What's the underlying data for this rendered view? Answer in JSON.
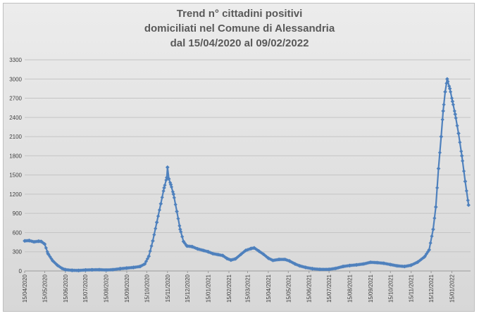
{
  "chart_data": {
    "type": "line",
    "title_lines": [
      "Trend n° cittadini positivi",
      "domiciliati nel Comune di Alessandria",
      "dal 15/04/2020 al 09/02/2022"
    ],
    "xlabel": "",
    "ylabel": "",
    "ylim": [
      0,
      3300
    ],
    "yticks": [
      0,
      300,
      600,
      900,
      1200,
      1500,
      1800,
      2100,
      2400,
      2700,
      3000,
      3300
    ],
    "x_tick_labels": [
      "15/04/2020",
      "15/05/2020",
      "15/06/2020",
      "15/07/2020",
      "15/08/2020",
      "15/09/2020",
      "15/10/2020",
      "15/11/2020",
      "15/12/2020",
      "15/01/2021",
      "15/02/2021",
      "15/03/2021",
      "15/04/2021",
      "15/05/2021",
      "15/06/2021",
      "15/07/2021",
      "15/08/2021",
      "15/09/2021",
      "15/10/2021",
      "15/11/2021",
      "15/12/2021",
      "15/01/2022"
    ],
    "grid": true,
    "legend": "none",
    "line_color": "#4f81bd",
    "series": [
      {
        "points": [
          {
            "x": "2020-04-15",
            "y": 470
          },
          {
            "x": "2020-04-22",
            "y": 475
          },
          {
            "x": "2020-04-29",
            "y": 455
          },
          {
            "x": "2020-05-06",
            "y": 465
          },
          {
            "x": "2020-05-10",
            "y": 460
          },
          {
            "x": "2020-05-15",
            "y": 420
          },
          {
            "x": "2020-05-20",
            "y": 270
          },
          {
            "x": "2020-05-27",
            "y": 160
          },
          {
            "x": "2020-06-03",
            "y": 90
          },
          {
            "x": "2020-06-10",
            "y": 40
          },
          {
            "x": "2020-06-15",
            "y": 20
          },
          {
            "x": "2020-06-25",
            "y": 10
          },
          {
            "x": "2020-07-05",
            "y": 8
          },
          {
            "x": "2020-07-15",
            "y": 15
          },
          {
            "x": "2020-07-25",
            "y": 18
          },
          {
            "x": "2020-08-05",
            "y": 20
          },
          {
            "x": "2020-08-15",
            "y": 15
          },
          {
            "x": "2020-08-25",
            "y": 20
          },
          {
            "x": "2020-09-05",
            "y": 35
          },
          {
            "x": "2020-09-15",
            "y": 45
          },
          {
            "x": "2020-09-25",
            "y": 55
          },
          {
            "x": "2020-10-05",
            "y": 70
          },
          {
            "x": "2020-10-12",
            "y": 110
          },
          {
            "x": "2020-10-18",
            "y": 230
          },
          {
            "x": "2020-10-24",
            "y": 470
          },
          {
            "x": "2020-10-30",
            "y": 760
          },
          {
            "x": "2020-11-05",
            "y": 1050
          },
          {
            "x": "2020-11-10",
            "y": 1300
          },
          {
            "x": "2020-11-14",
            "y": 1460
          },
          {
            "x": "2020-11-15",
            "y": 1620
          },
          {
            "x": "2020-11-17",
            "y": 1440
          },
          {
            "x": "2020-11-20",
            "y": 1350
          },
          {
            "x": "2020-11-24",
            "y": 1200
          },
          {
            "x": "2020-11-29",
            "y": 930
          },
          {
            "x": "2020-12-04",
            "y": 650
          },
          {
            "x": "2020-12-09",
            "y": 460
          },
          {
            "x": "2020-12-14",
            "y": 390
          },
          {
            "x": "2020-12-22",
            "y": 380
          },
          {
            "x": "2020-12-30",
            "y": 345
          },
          {
            "x": "2021-01-08",
            "y": 320
          },
          {
            "x": "2021-01-15",
            "y": 300
          },
          {
            "x": "2021-01-22",
            "y": 270
          },
          {
            "x": "2021-01-30",
            "y": 255
          },
          {
            "x": "2021-02-06",
            "y": 240
          },
          {
            "x": "2021-02-12",
            "y": 195
          },
          {
            "x": "2021-02-18",
            "y": 170
          },
          {
            "x": "2021-02-25",
            "y": 190
          },
          {
            "x": "2021-03-05",
            "y": 260
          },
          {
            "x": "2021-03-12",
            "y": 320
          },
          {
            "x": "2021-03-20",
            "y": 350
          },
          {
            "x": "2021-03-25",
            "y": 360
          },
          {
            "x": "2021-04-01",
            "y": 310
          },
          {
            "x": "2021-04-08",
            "y": 260
          },
          {
            "x": "2021-04-15",
            "y": 200
          },
          {
            "x": "2021-04-22",
            "y": 165
          },
          {
            "x": "2021-05-01",
            "y": 180
          },
          {
            "x": "2021-05-10",
            "y": 180
          },
          {
            "x": "2021-05-17",
            "y": 155
          },
          {
            "x": "2021-05-25",
            "y": 110
          },
          {
            "x": "2021-06-01",
            "y": 80
          },
          {
            "x": "2021-06-10",
            "y": 55
          },
          {
            "x": "2021-06-20",
            "y": 35
          },
          {
            "x": "2021-07-01",
            "y": 25
          },
          {
            "x": "2021-07-15",
            "y": 25
          },
          {
            "x": "2021-07-25",
            "y": 40
          },
          {
            "x": "2021-08-05",
            "y": 70
          },
          {
            "x": "2021-08-15",
            "y": 85
          },
          {
            "x": "2021-08-25",
            "y": 95
          },
          {
            "x": "2021-09-05",
            "y": 110
          },
          {
            "x": "2021-09-15",
            "y": 135
          },
          {
            "x": "2021-09-25",
            "y": 130
          },
          {
            "x": "2021-10-05",
            "y": 120
          },
          {
            "x": "2021-10-15",
            "y": 100
          },
          {
            "x": "2021-10-25",
            "y": 80
          },
          {
            "x": "2021-11-05",
            "y": 70
          },
          {
            "x": "2021-11-15",
            "y": 90
          },
          {
            "x": "2021-11-25",
            "y": 140
          },
          {
            "x": "2021-12-05",
            "y": 220
          },
          {
            "x": "2021-12-12",
            "y": 330
          },
          {
            "x": "2021-12-18",
            "y": 650
          },
          {
            "x": "2021-12-22",
            "y": 1000
          },
          {
            "x": "2021-12-26",
            "y": 1600
          },
          {
            "x": "2021-12-30",
            "y": 2100
          },
          {
            "x": "2022-01-02",
            "y": 2500
          },
          {
            "x": "2022-01-05",
            "y": 2800
          },
          {
            "x": "2022-01-08",
            "y": 3000
          },
          {
            "x": "2022-01-12",
            "y": 2850
          },
          {
            "x": "2022-01-16",
            "y": 2650
          },
          {
            "x": "2022-01-20",
            "y": 2450
          },
          {
            "x": "2022-01-25",
            "y": 2150
          },
          {
            "x": "2022-01-30",
            "y": 1800
          },
          {
            "x": "2022-02-04",
            "y": 1400
          },
          {
            "x": "2022-02-09",
            "y": 1030
          }
        ]
      }
    ]
  }
}
